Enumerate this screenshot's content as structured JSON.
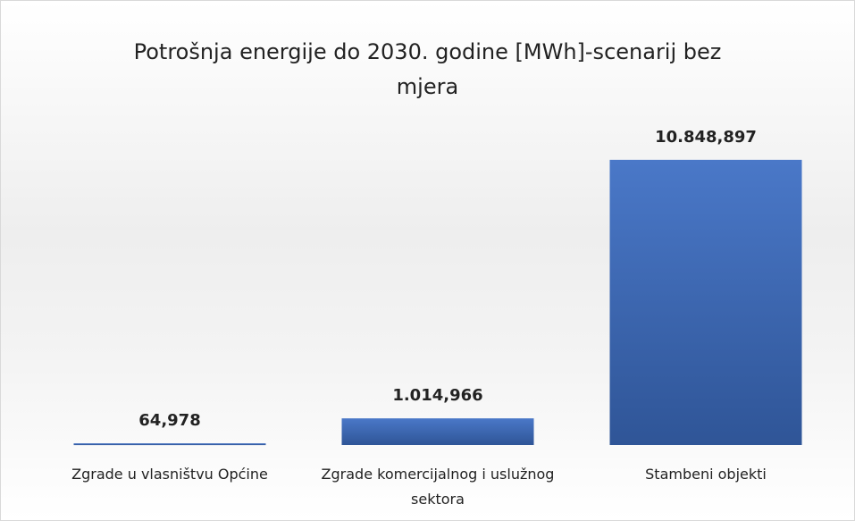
{
  "chart_data": {
    "type": "bar",
    "title": "Potrošnja energije do 2030. godine [MWh]-scenarij bez mjera",
    "categories": [
      "Zgrade u vlasništvu Općine",
      "Zgrade komercijalnog i uslužnog sektora",
      "Stambeni objekti"
    ],
    "values": [
      64.978,
      1014.966,
      10848.897
    ],
    "value_labels": [
      "64,978",
      "1.014,966",
      "10.848,897"
    ],
    "color": "#4472c4",
    "ylim": [
      0,
      12000
    ]
  }
}
